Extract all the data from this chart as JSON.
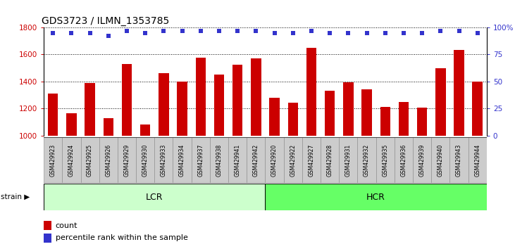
{
  "title": "GDS3723 / ILMN_1353785",
  "categories": [
    "GSM429923",
    "GSM429924",
    "GSM429925",
    "GSM429926",
    "GSM429929",
    "GSM429930",
    "GSM429933",
    "GSM429934",
    "GSM429937",
    "GSM429938",
    "GSM429941",
    "GSM429942",
    "GSM429920",
    "GSM429922",
    "GSM429927",
    "GSM429928",
    "GSM429931",
    "GSM429932",
    "GSM429935",
    "GSM429936",
    "GSM429939",
    "GSM429940",
    "GSM429943",
    "GSM429944"
  ],
  "values": [
    1310,
    1165,
    1390,
    1130,
    1530,
    1085,
    1460,
    1400,
    1575,
    1450,
    1525,
    1570,
    1280,
    1245,
    1650,
    1330,
    1395,
    1340,
    1215,
    1250,
    1205,
    1500,
    1635,
    1400
  ],
  "percentile_values": [
    95,
    95,
    95,
    92,
    97,
    95,
    97,
    97,
    97,
    97,
    97,
    97,
    95,
    95,
    97,
    95,
    95,
    95,
    95,
    95,
    95,
    97,
    97,
    95
  ],
  "groups": [
    {
      "label": "LCR",
      "start": 0,
      "end": 12,
      "color": "#ccffcc"
    },
    {
      "label": "HCR",
      "start": 12,
      "end": 24,
      "color": "#66ff66"
    }
  ],
  "bar_color": "#cc0000",
  "dot_color": "#3333cc",
  "ylim_left": [
    1000,
    1800
  ],
  "ylim_right": [
    0,
    100
  ],
  "yticks_left": [
    1000,
    1200,
    1400,
    1600,
    1800
  ],
  "yticks_right": [
    0,
    25,
    50,
    75,
    100
  ],
  "grid_color": "#000000",
  "background_color": "#ffffff",
  "title_fontsize": 10,
  "axis_color_left": "#cc0000",
  "axis_color_right": "#3333cc",
  "tick_bg_color": "#cccccc",
  "tick_border_color": "#888888",
  "group_border_color": "#000000",
  "legend_count": "count",
  "legend_percentile": "percentile rank within the sample"
}
